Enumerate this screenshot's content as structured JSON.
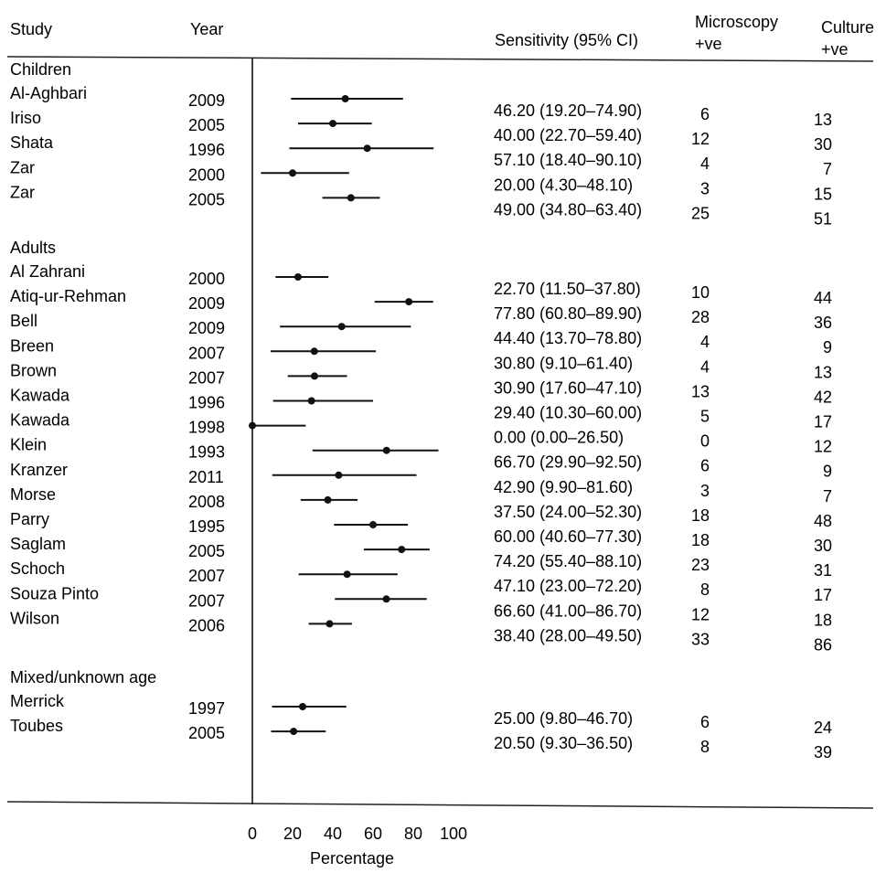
{
  "headers": {
    "study": "Study",
    "year": "Year",
    "sensitivity": "Sensitivity (95% CI)",
    "microscopy": [
      "Microscopy",
      "+ve"
    ],
    "culture": [
      "Culture",
      "+ve"
    ]
  },
  "xaxis": {
    "label": "Percentage",
    "ticks": [
      0,
      20,
      40,
      60,
      80,
      100
    ]
  },
  "chart_data": {
    "type": "forest",
    "xlabel": "Percentage",
    "xlim": [
      0,
      100
    ],
    "groups": [
      {
        "name": "Children",
        "studies": [
          {
            "study": "Al-Aghbari",
            "year": "2009",
            "est": 46.2,
            "lo": 19.2,
            "hi": 74.9,
            "ci_text": "46.20 (19.20–74.90)",
            "micro": "6",
            "culture": "13"
          },
          {
            "study": "Iriso",
            "year": "2005",
            "est": 40.0,
            "lo": 22.7,
            "hi": 59.4,
            "ci_text": "40.00 (22.70–59.40)",
            "micro": "12",
            "culture": "30"
          },
          {
            "study": "Shata",
            "year": "1996",
            "est": 57.1,
            "lo": 18.4,
            "hi": 90.1,
            "ci_text": "57.10 (18.40–90.10)",
            "micro": "4",
            "culture": "7"
          },
          {
            "study": "Zar",
            "year": "2000",
            "est": 20.0,
            "lo": 4.3,
            "hi": 48.1,
            "ci_text": "20.00 (4.30–48.10)",
            "micro": "3",
            "culture": "15"
          },
          {
            "study": "Zar",
            "year": "2005",
            "est": 49.0,
            "lo": 34.8,
            "hi": 63.4,
            "ci_text": "49.00 (34.80–63.40)",
            "micro": "25",
            "culture": "51"
          }
        ]
      },
      {
        "name": "Adults",
        "studies": [
          {
            "study": "Al Zahrani",
            "year": "2000",
            "est": 22.7,
            "lo": 11.5,
            "hi": 37.8,
            "ci_text": "22.70 (11.50–37.80)",
            "micro": "10",
            "culture": "44"
          },
          {
            "study": "Atiq-ur-Rehman",
            "year": "2009",
            "est": 77.8,
            "lo": 60.8,
            "hi": 89.9,
            "ci_text": "77.80 (60.80–89.90)",
            "micro": "28",
            "culture": "36"
          },
          {
            "study": "Bell",
            "year": "2009",
            "est": 44.4,
            "lo": 13.7,
            "hi": 78.8,
            "ci_text": "44.40 (13.70–78.80)",
            "micro": "4",
            "culture": "9"
          },
          {
            "study": "Breen",
            "year": "2007",
            "est": 30.8,
            "lo": 9.1,
            "hi": 61.4,
            "ci_text": "30.80 (9.10–61.40)",
            "micro": "4",
            "culture": "13"
          },
          {
            "study": "Brown",
            "year": "2007",
            "est": 30.9,
            "lo": 17.6,
            "hi": 47.1,
            "ci_text": "30.90 (17.60–47.10)",
            "micro": "13",
            "culture": "42"
          },
          {
            "study": "Kawada",
            "year": "1996",
            "est": 29.4,
            "lo": 10.3,
            "hi": 60.0,
            "ci_text": "29.40 (10.30–60.00)",
            "micro": "5",
            "culture": "17"
          },
          {
            "study": "Kawada",
            "year": "1998",
            "est": 0.0,
            "lo": 0.0,
            "hi": 26.5,
            "ci_text": "0.00 (0.00–26.50)",
            "micro": "0",
            "culture": "12"
          },
          {
            "study": "Klein",
            "year": "1993",
            "est": 66.7,
            "lo": 29.9,
            "hi": 92.5,
            "ci_text": "66.70 (29.90–92.50)",
            "micro": "6",
            "culture": "9"
          },
          {
            "study": "Kranzer",
            "year": "2011",
            "est": 42.9,
            "lo": 9.9,
            "hi": 81.6,
            "ci_text": "42.90 (9.90–81.60)",
            "micro": "3",
            "culture": "7"
          },
          {
            "study": "Morse",
            "year": "2008",
            "est": 37.5,
            "lo": 24.0,
            "hi": 52.3,
            "ci_text": "37.50 (24.00–52.30)",
            "micro": "18",
            "culture": "48"
          },
          {
            "study": "Parry",
            "year": "1995",
            "est": 60.0,
            "lo": 40.6,
            "hi": 77.3,
            "ci_text": "60.00 (40.60–77.30)",
            "micro": "18",
            "culture": "30"
          },
          {
            "study": "Saglam",
            "year": "2005",
            "est": 74.2,
            "lo": 55.4,
            "hi": 88.1,
            "ci_text": "74.20 (55.40–88.10)",
            "micro": "23",
            "culture": "31"
          },
          {
            "study": "Schoch",
            "year": "2007",
            "est": 47.1,
            "lo": 23.0,
            "hi": 72.2,
            "ci_text": "47.10 (23.00–72.20)",
            "micro": "8",
            "culture": "17"
          },
          {
            "study": "Souza Pinto",
            "year": "2007",
            "est": 66.6,
            "lo": 41.0,
            "hi": 86.7,
            "ci_text": "66.60 (41.00–86.70)",
            "micro": "12",
            "culture": "18"
          },
          {
            "study": "Wilson",
            "year": "2006",
            "est": 38.4,
            "lo": 28.0,
            "hi": 49.5,
            "ci_text": "38.40 (28.00–49.50)",
            "micro": "33",
            "culture": "86"
          }
        ]
      },
      {
        "name": "Mixed/unknown age",
        "studies": [
          {
            "study": "Merrick",
            "year": "1997",
            "est": 25.0,
            "lo": 9.8,
            "hi": 46.7,
            "ci_text": "25.00 (9.80–46.70)",
            "micro": "6",
            "culture": "24"
          },
          {
            "study": "Toubes",
            "year": "2005",
            "est": 20.5,
            "lo": 9.3,
            "hi": 36.5,
            "ci_text": "20.50 (9.30–36.50)",
            "micro": "8",
            "culture": "39"
          }
        ]
      }
    ]
  }
}
